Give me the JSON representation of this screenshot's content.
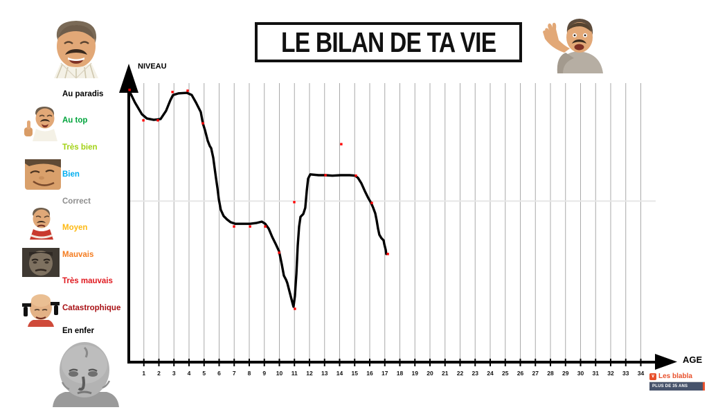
{
  "title": {
    "text": "LE BILAN DE TA VIE"
  },
  "axes": {
    "y_label": "NIVEAU",
    "x_label": "AGE"
  },
  "levels": [
    {
      "label": "Au paradis",
      "color": "#000000"
    },
    {
      "label": "Au top",
      "color": "#00a43c"
    },
    {
      "label": "Très bien",
      "color": "#a2d215"
    },
    {
      "label": "Bien",
      "color": "#00aeef"
    },
    {
      "label": "Correct",
      "color": "#8d8d8d"
    },
    {
      "label": "Moyen",
      "color": "#fdb913"
    },
    {
      "label": "Mauvais",
      "color": "#f47c20"
    },
    {
      "label": "Très mauvais",
      "color": "#e0191f"
    },
    {
      "label": "Catastrophique",
      "color": "#a81115"
    },
    {
      "label": "En enfer",
      "color": "#000000"
    }
  ],
  "memes": [
    {
      "name": "risitas-laughing"
    },
    {
      "name": "risitas-pointing"
    },
    {
      "name": "risitas-thumbs-up"
    },
    {
      "name": "smiling-face"
    },
    {
      "name": "sad-risitas"
    },
    {
      "name": "grim-dark-face"
    },
    {
      "name": "bald-despair"
    },
    {
      "name": "creepy-baby"
    }
  ],
  "signature": {
    "line1": "Les blabla",
    "line2": "PLUS DE 35 ANS",
    "accent_color": "#e8502b",
    "bar_color": "#47536b"
  },
  "chart_data": {
    "type": "line",
    "title": "LE BILAN DE TA VIE",
    "xlabel": "AGE",
    "ylabel": "NIVEAU",
    "x_ticks": [
      1,
      2,
      3,
      4,
      5,
      6,
      7,
      8,
      9,
      10,
      11,
      12,
      13,
      14,
      15,
      16,
      17,
      18,
      19,
      20,
      21,
      22,
      23,
      24,
      25,
      26,
      27,
      28,
      29,
      30,
      31,
      32,
      33,
      34
    ],
    "x_axis_max_shown": 34,
    "x_range_drawn": [
      0,
      17.2
    ],
    "y_levels_top_to_bottom": [
      "Au paradis",
      "Au top",
      "Très bien",
      "Bien",
      "Correct",
      "Moyen",
      "Mauvais",
      "Très mauvais",
      "Catastrophique",
      "En enfer"
    ],
    "level_scale": {
      "Au paradis": 10,
      "Au top": 9,
      "Très bien": 8,
      "Bien": 7,
      "Correct": 6,
      "Moyen": 5,
      "Mauvais": 4,
      "Très mauvais": 3,
      "Catastrophique": 2,
      "En enfer": 1
    },
    "reference_line_level": "Correct",
    "grid": true,
    "curve_color": "#000000",
    "marker_color": "#ff0000",
    "curve": [
      [
        0,
        10.16
      ],
      [
        0.41,
        9.69
      ],
      [
        0.87,
        9.25
      ],
      [
        1.2,
        9.09
      ],
      [
        1.66,
        9.04
      ],
      [
        2.11,
        9.07
      ],
      [
        2.48,
        9.38
      ],
      [
        2.76,
        9.77
      ],
      [
        2.94,
        9.97
      ],
      [
        3.31,
        10.03
      ],
      [
        3.86,
        10.05
      ],
      [
        4.18,
        9.97
      ],
      [
        4.46,
        9.69
      ],
      [
        4.78,
        9.33
      ],
      [
        4.92,
        8.91
      ],
      [
        5.06,
        8.65
      ],
      [
        5.24,
        8.26
      ],
      [
        5.38,
        8.06
      ],
      [
        5.47,
        7.98
      ],
      [
        5.61,
        7.62
      ],
      [
        5.7,
        7.23
      ],
      [
        5.79,
        6.87
      ],
      [
        5.89,
        6.48
      ],
      [
        5.98,
        6.06
      ],
      [
        6.11,
        5.67
      ],
      [
        6.3,
        5.44
      ],
      [
        6.53,
        5.31
      ],
      [
        6.76,
        5.21
      ],
      [
        7.08,
        5.15
      ],
      [
        7.54,
        5.15
      ],
      [
        8.05,
        5.15
      ],
      [
        8.46,
        5.18
      ],
      [
        8.83,
        5.23
      ],
      [
        9.06,
        5.15
      ],
      [
        9.29,
        4.97
      ],
      [
        9.52,
        4.66
      ],
      [
        9.75,
        4.4
      ],
      [
        9.98,
        4.12
      ],
      [
        10.16,
        3.63
      ],
      [
        10.3,
        3.21
      ],
      [
        10.44,
        3.06
      ],
      [
        10.53,
        2.93
      ],
      [
        10.67,
        2.62
      ],
      [
        10.85,
        2.23
      ],
      [
        10.94,
        2.05
      ],
      [
        11.03,
        2.44
      ],
      [
        11.13,
        3.29
      ],
      [
        11.22,
        4.33
      ],
      [
        11.31,
        5.05
      ],
      [
        11.4,
        5.41
      ],
      [
        11.59,
        5.52
      ],
      [
        11.72,
        5.75
      ],
      [
        11.82,
        6.4
      ],
      [
        11.91,
        6.84
      ],
      [
        12.05,
        7
      ],
      [
        12.6,
        6.97
      ],
      [
        13.06,
        6.97
      ],
      [
        13.52,
        6.95
      ],
      [
        14.07,
        6.97
      ],
      [
        14.67,
        6.97
      ],
      [
        15.03,
        6.95
      ],
      [
        15.22,
        6.87
      ],
      [
        15.45,
        6.66
      ],
      [
        15.68,
        6.37
      ],
      [
        15.91,
        6.11
      ],
      [
        16.09,
        5.93
      ],
      [
        16.23,
        5.75
      ],
      [
        16.37,
        5.54
      ],
      [
        16.46,
        5.28
      ],
      [
        16.55,
        4.97
      ],
      [
        16.64,
        4.74
      ],
      [
        16.78,
        4.61
      ],
      [
        16.92,
        4.53
      ],
      [
        16.97,
        4.38
      ],
      [
        17.06,
        4.17
      ],
      [
        17.1,
        4.02
      ]
    ],
    "markers": [
      [
        0.05,
        10.16
      ],
      [
        0.97,
        9.02
      ],
      [
        1.93,
        9.02
      ],
      [
        2.9,
        10.08
      ],
      [
        3.91,
        10.13
      ],
      [
        4.92,
        8.91
      ],
      [
        6.99,
        5.05
      ],
      [
        8.05,
        5.05
      ],
      [
        9.06,
        5.05
      ],
      [
        9.98,
        4.07
      ],
      [
        11.03,
        1.97
      ],
      [
        10.99,
        5.96
      ],
      [
        13.06,
        6.97
      ],
      [
        14.11,
        8.13
      ],
      [
        15.08,
        6.95
      ],
      [
        16.14,
        5.93
      ],
      [
        17.2,
        4.02
      ]
    ]
  }
}
